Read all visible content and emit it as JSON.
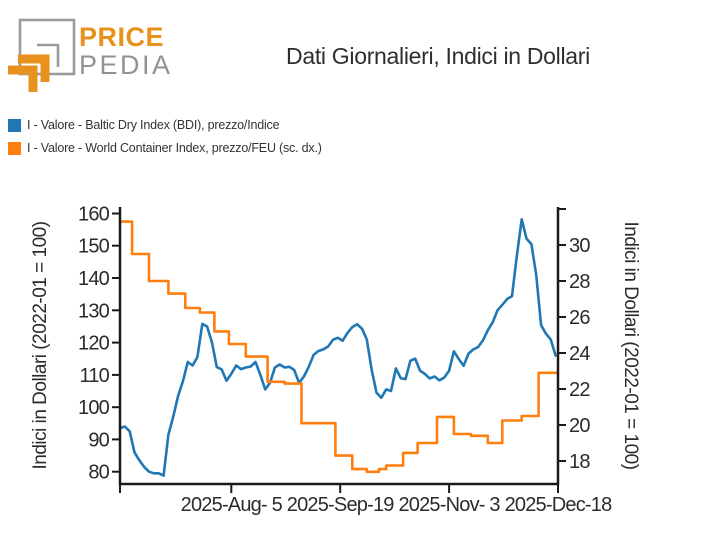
{
  "header": {
    "logo": {
      "word_top": "PRICE",
      "word_bottom": "PEDIA"
    },
    "title": "Dati Giornalieri, Indici in Dollari"
  },
  "colors": {
    "brand_orange": "#e8911c",
    "brand_gray": "#9b9b9b",
    "series_blue": "#1f77b4",
    "series_orange": "#ff7f0e",
    "axis_black": "#1a1a1a",
    "text_dark": "#2e2e2e"
  },
  "chart_data": {
    "type": "line",
    "title": "Dati Giornalieri, Indici in Dollari",
    "x_unit": "days since 2025-06-20",
    "x_range": [
      0,
      181
    ],
    "x_ticks": [
      {
        "x": 46,
        "label": "2025-Aug- 5"
      },
      {
        "x": 91,
        "label": "2025-Sep-19"
      },
      {
        "x": 136,
        "label": "2025-Nov- 3"
      },
      {
        "x": 181,
        "label": "2025-Dec-18"
      }
    ],
    "axes": {
      "left": {
        "label": "Indici in Dollari (2022-01 = 100)",
        "ticks": [
          160,
          150,
          140,
          130,
          120,
          110,
          100,
          90,
          80
        ],
        "range": [
          76.2,
          162.0
        ]
      },
      "right": {
        "label": "Indici in Dollari (2022-01 = 100)",
        "ticks": [
          30,
          28,
          26,
          24,
          22,
          20,
          18
        ],
        "extra_unlabeled_tick": 32,
        "range": [
          16.72,
          32.11
        ]
      }
    },
    "series": [
      {
        "name": "I - Valore - Baltic Dry Index (BDI), prezzo/Indice",
        "color": "#1f77b4",
        "axis": "left",
        "mode": "line",
        "x": [
          0,
          2,
          4,
          6,
          8,
          10,
          12,
          14,
          16,
          18,
          20,
          22,
          24,
          26,
          28,
          30,
          32,
          34,
          36,
          38,
          40,
          42,
          44,
          46,
          48,
          50,
          52,
          54,
          56,
          58,
          60,
          62,
          64,
          66,
          68,
          70,
          72,
          74,
          76,
          78,
          80,
          82,
          84,
          86,
          88,
          90,
          92,
          94,
          96,
          98,
          100,
          102,
          104,
          106,
          108,
          110,
          112,
          114,
          116,
          118,
          120,
          122,
          124,
          126,
          128,
          130,
          132,
          134,
          136,
          138,
          140,
          142,
          144,
          146,
          148,
          150,
          152,
          154,
          156,
          158,
          160,
          162,
          164,
          166,
          168,
          170,
          172,
          174,
          176,
          178,
          180
        ],
        "y": [
          93.5,
          94,
          92.5,
          86,
          83.5,
          81.5,
          80,
          79.5,
          79.5,
          78.8,
          91.5,
          97,
          103.5,
          108,
          114,
          112.9,
          115.5,
          125.8,
          125,
          120,
          112.4,
          111.7,
          108.2,
          110.3,
          112.9,
          111.8,
          112.3,
          112.6,
          114,
          110,
          105.5,
          107.5,
          112.3,
          113.2,
          112.3,
          112.5,
          111.5,
          107.5,
          109.5,
          112.5,
          116.2,
          117.4,
          117.9,
          118.8,
          120.9,
          121.5,
          120.6,
          123,
          124.8,
          125.7,
          124.3,
          121,
          111.5,
          104.5,
          102.9,
          105.5,
          105,
          112,
          109,
          108.7,
          114.4,
          115,
          111.3,
          110.3,
          108.9,
          109.5,
          108.3,
          109.2,
          111.3,
          117.3,
          114.9,
          112.8,
          116.6,
          117.9,
          118.6,
          120.7,
          123.8,
          126.3,
          130,
          131.7,
          133.5,
          134.4,
          147,
          158.2,
          152.2,
          150.5,
          141,
          125.4,
          122.8,
          121,
          116
        ]
      },
      {
        "name": "I - Valore - World Container Index, prezzo/FEU (sc. dx.)",
        "color": "#ff7f0e",
        "axis": "right",
        "mode": "step",
        "x": [
          0,
          5,
          12,
          20,
          27,
          33,
          39,
          45,
          52,
          61,
          68,
          75,
          89,
          96,
          102,
          107,
          110,
          117,
          123,
          131,
          138,
          145,
          152,
          158,
          166,
          173
        ],
        "y": [
          31.3,
          29.5,
          28.0,
          27.3,
          26.5,
          26.25,
          25.2,
          24.5,
          23.8,
          22.4,
          22.3,
          20.1,
          18.3,
          17.55,
          17.4,
          17.55,
          17.75,
          18.45,
          19.0,
          20.45,
          19.5,
          19.4,
          19.0,
          20.25,
          20.5,
          22.9
        ]
      }
    ]
  }
}
